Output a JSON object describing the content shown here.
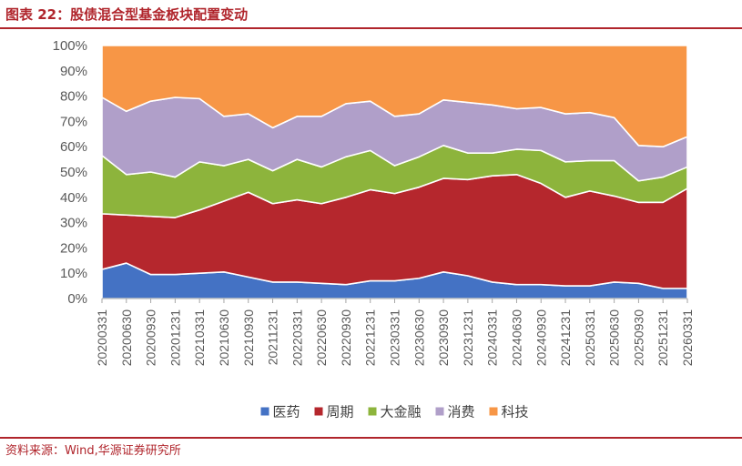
{
  "header": {
    "title": "图表 22：股债混合型基金板块配置变动"
  },
  "footer": {
    "source": "资料来源：Wind,华源证券研究所"
  },
  "chart_data": {
    "type": "area",
    "stacked": true,
    "normalized": true,
    "title": "",
    "xlabel": "",
    "ylabel": "",
    "ylim": [
      0,
      100
    ],
    "y_ticks": [
      "0%",
      "10%",
      "20%",
      "30%",
      "40%",
      "50%",
      "60%",
      "70%",
      "80%",
      "90%",
      "100%"
    ],
    "grid": false,
    "legend_position": "bottom",
    "x": [
      "20200331",
      "20200630",
      "20200930",
      "20201231",
      "20210331",
      "20210630",
      "20210930",
      "20211231",
      "20220331",
      "20220630",
      "20220930",
      "20221231",
      "20230331",
      "20230630",
      "20230930",
      "20231231",
      "20240331",
      "20240630",
      "20240930",
      "20241231",
      "20250331",
      "20250630",
      "20250930",
      "20251231",
      "20260331"
    ],
    "series": [
      {
        "name": "医药",
        "color": "#4472c4",
        "values": [
          11.5,
          14,
          9.5,
          9.5,
          10,
          10.5,
          8.5,
          6.5,
          6.5,
          6,
          5.5,
          7,
          7,
          8,
          10.5,
          9,
          6.5,
          5.5,
          5.5,
          5,
          5,
          6.5,
          6,
          4,
          4
        ]
      },
      {
        "name": "周期",
        "color": "#b5272d",
        "values": [
          22,
          19,
          23,
          22.5,
          25,
          28,
          33.5,
          31,
          32.5,
          31.5,
          34.5,
          36,
          34.5,
          36,
          37,
          38,
          42,
          43.5,
          40,
          35,
          37.5,
          34,
          32,
          34,
          39.5
        ]
      },
      {
        "name": "大金融",
        "color": "#8db43c",
        "values": [
          23,
          16,
          17.5,
          16,
          19,
          14,
          13,
          13,
          16,
          14.5,
          16,
          15.5,
          11,
          12,
          13,
          10.5,
          9,
          10,
          13,
          14,
          12,
          14,
          8.5,
          10,
          8.5
        ]
      },
      {
        "name": "消费",
        "color": "#b09fc9",
        "values": [
          23,
          25,
          28,
          31.5,
          25,
          19.5,
          18,
          17,
          17,
          20,
          21,
          19.5,
          19.5,
          17,
          18,
          20,
          19,
          16,
          17,
          19,
          19,
          17,
          14,
          12,
          12
        ]
      },
      {
        "name": "科技",
        "color": "#f79646",
        "values": [
          20.5,
          26,
          22,
          20.5,
          21,
          28,
          27,
          32.5,
          28,
          28,
          23,
          22,
          28,
          27,
          21.5,
          22.5,
          23.5,
          25,
          24.5,
          27,
          26.5,
          28.5,
          39.5,
          40,
          36
        ]
      }
    ]
  }
}
